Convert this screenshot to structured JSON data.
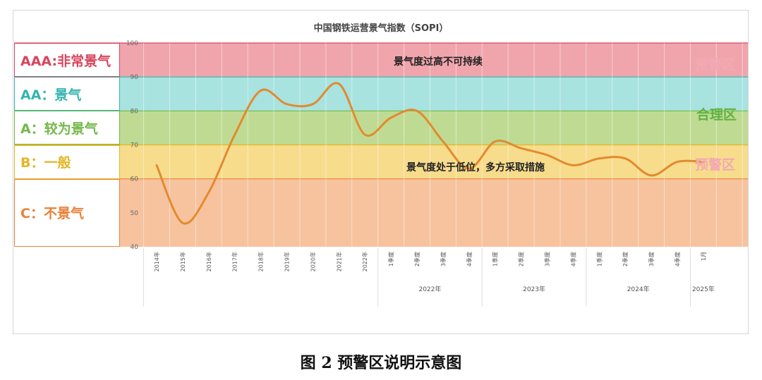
{
  "chart_data": {
    "type": "line",
    "title": "中国钢铁运营景气指数（SOPI）",
    "ylim": [
      40,
      100
    ],
    "y_ticks": [
      "40",
      "50",
      "60",
      "70",
      "80",
      "90",
      "100"
    ],
    "grid": true,
    "x_labels": [
      "2014年",
      "2015年",
      "2016年",
      "2017年",
      "2018年",
      "2019年",
      "2020年",
      "2021年",
      "2022年",
      "1季度",
      "2季度",
      "3季度",
      "4季度",
      "1季度",
      "2季度",
      "3季度",
      "4季度",
      "1季度",
      "2季度",
      "3季度",
      "4季度",
      "1月"
    ],
    "year_groups": [
      {
        "label": "2022年",
        "start": 9,
        "end": 12
      },
      {
        "label": "2023年",
        "start": 13,
        "end": 16
      },
      {
        "label": "2024年",
        "start": 17,
        "end": 20
      },
      {
        "label": "2025年",
        "start": 21,
        "end": 21
      }
    ],
    "series": [
      {
        "values": [
          64,
          47,
          56,
          73,
          86,
          82,
          82,
          88,
          73,
          78,
          80,
          71,
          63,
          71,
          69,
          67,
          64,
          66,
          66,
          61,
          65,
          65
        ],
        "color": "#e38a2e"
      }
    ],
    "bands": [
      {
        "from": 90,
        "to": 100,
        "fill": "#f0a5ad",
        "label": "AAA:非常景气",
        "label_color": "#d9455c",
        "border": "#d9455c"
      },
      {
        "from": 80,
        "to": 90,
        "fill": "#a8e3e0",
        "label": "AA：景气",
        "label_color": "#33b5b0",
        "border": "#33b5b0"
      },
      {
        "from": 70,
        "to": 80,
        "fill": "#bfdb93",
        "label": "A：较为景气",
        "label_color": "#74b84a",
        "border": "#74b84a"
      },
      {
        "from": 60,
        "to": 70,
        "fill": "#f7dc8c",
        "label": "B：一般",
        "label_color": "#e5b526",
        "border": "#e5b526"
      },
      {
        "from": 40,
        "to": 60,
        "fill": "#f6c39e",
        "label": "C：不景气",
        "label_color": "#e9823a",
        "border": "#e9823a"
      }
    ],
    "zone_notes": {
      "high": "景气度过高不可持续",
      "low": "景气度处于低位，多方采取措施"
    },
    "zone_tags": [
      {
        "text": "预警区",
        "color": "#f1a9b3"
      },
      {
        "text": "合理区",
        "color": "#62b242"
      },
      {
        "text": "预警区",
        "color": "#f1a9b3"
      }
    ]
  },
  "caption": "图 2  预警区说明示意图"
}
